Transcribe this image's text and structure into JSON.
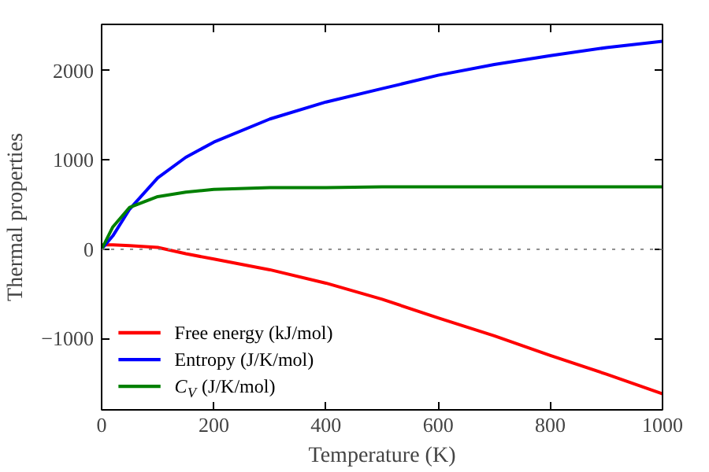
{
  "chart_data": {
    "type": "line",
    "xlabel": "Temperature (K)",
    "ylabel": "Thermal properties",
    "xlim": [
      0,
      1000
    ],
    "xticks": [
      0,
      200,
      400,
      600,
      800,
      1000
    ],
    "ylim": [
      -1800,
      2520
    ],
    "yticks": [
      -1000,
      0,
      1000,
      2000
    ],
    "x": [
      0,
      20,
      50,
      100,
      150,
      200,
      300,
      400,
      500,
      600,
      700,
      800,
      900,
      1000
    ],
    "series": [
      {
        "name": "Free energy (kJ/mol)",
        "color": "#ff0000",
        "values": [
          50,
          50,
          40,
          20,
          -50,
          -110,
          -230,
          -380,
          -560,
          -770,
          -970,
          -1190,
          -1400,
          -1620
        ]
      },
      {
        "name": "Entropy (J/K/mol)",
        "color": "#0000ff",
        "values": [
          0,
          150,
          450,
          800,
          1030,
          1200,
          1460,
          1650,
          1800,
          1950,
          2070,
          2170,
          2260,
          2330
        ]
      },
      {
        "name": "C$_{V}$ (J/K/mol)",
        "color": "#008000",
        "values": [
          0,
          250,
          470,
          590,
          640,
          670,
          690,
          690,
          700,
          700,
          700,
          700,
          700,
          700
        ]
      }
    ],
    "ref_lines": [
      {
        "axis": "y",
        "value": 0,
        "label": null,
        "color": "#808080",
        "line_style": "dotted"
      }
    ],
    "legend": "bottom left",
    "grid": false
  }
}
